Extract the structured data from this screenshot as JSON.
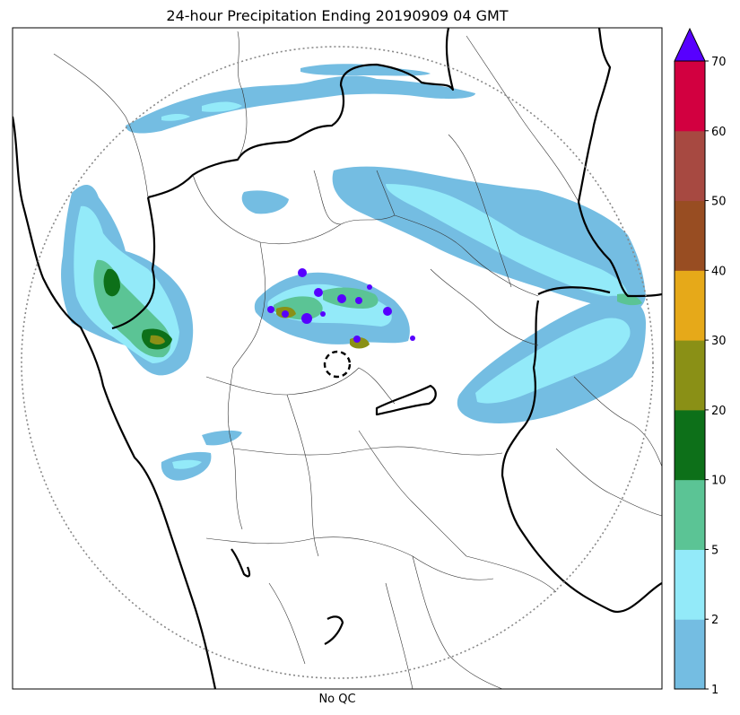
{
  "title": "24-hour Precipitation Ending 20190909 04 GMT",
  "xlabel": "No QC",
  "colorbar": {
    "levels": [
      1,
      2,
      5,
      10,
      20,
      30,
      40,
      50,
      60,
      70
    ],
    "colors": [
      "#74bde2",
      "#93eaf9",
      "#5bc495",
      "#0d7019",
      "#8a9016",
      "#e6a919",
      "#984d22",
      "#a74941",
      "#d20040"
    ],
    "extend_color": "#5700ff",
    "tick_labels": [
      "1",
      "2",
      "5",
      "10",
      "20",
      "30",
      "40",
      "50",
      "60",
      "70"
    ]
  },
  "map": {
    "range_ring": "dotted",
    "radar_site_marker": "dashed-circle",
    "precip_colors": {
      "light": "#74bde2",
      "medium": "#93eaf9",
      "green": "#5bc495",
      "dark_green": "#0d7019",
      "olive": "#8a9016",
      "purple": "#5700ff"
    }
  }
}
